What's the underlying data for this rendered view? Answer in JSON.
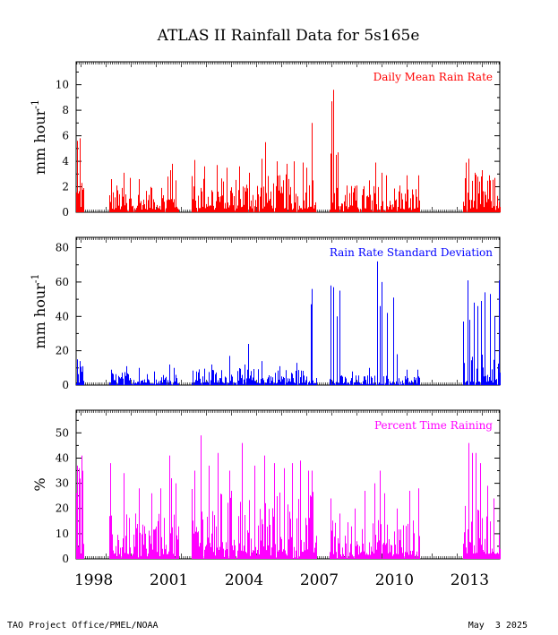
{
  "title": "ATLAS II Rainfall Data for 5s165e",
  "footer_left": "TAO Project Office/PMEL/NOAA",
  "footer_right": "May  3 2025",
  "x_axis": {
    "range": [
      1997.8,
      2014.7
    ],
    "ticks": [
      "1998",
      "2001",
      "2004",
      "2007",
      "2010",
      "2013"
    ]
  },
  "chart_data": [
    {
      "type": "bar",
      "title": "Daily Mean Rain Rate",
      "ylabel": "mm hour",
      "ylabel_superscript": "-1",
      "ylim": [
        0,
        11.8
      ],
      "yticks": [
        "0",
        "2",
        "4",
        "6",
        "8",
        "10"
      ],
      "color": "#ff0000",
      "x_range": [
        1997.8,
        2014.7
      ],
      "gaps": [
        [
          1998.1,
          1999.1
        ],
        [
          2001.9,
          2002.4
        ],
        [
          2007.4,
          2007.9
        ],
        [
          2011.5,
          2013.2
        ]
      ],
      "segments": [
        {
          "range": [
            1997.8,
            1998.1
          ],
          "typical": 1.6,
          "peaks": [
            [
              1997.85,
              5.6
            ],
            [
              1997.95,
              5.8
            ],
            [
              1998.0,
              2.3
            ]
          ]
        },
        {
          "range": [
            1999.1,
            2001.9
          ],
          "typical": 1.0,
          "peaks": [
            [
              1999.2,
              2.6
            ],
            [
              1999.4,
              2.1
            ],
            [
              1999.7,
              3.1
            ],
            [
              1999.95,
              2.7
            ],
            [
              2000.3,
              2.6
            ],
            [
              2000.8,
              1.9
            ],
            [
              2001.2,
              1.9
            ],
            [
              2001.45,
              2.8
            ],
            [
              2001.55,
              3.3
            ],
            [
              2001.62,
              3.8
            ],
            [
              2001.75,
              2.5
            ]
          ]
        },
        {
          "range": [
            2002.4,
            2007.4
          ],
          "typical": 1.5,
          "peaks": [
            [
              2002.5,
              4.1
            ],
            [
              2002.9,
              3.6
            ],
            [
              2003.4,
              3.7
            ],
            [
              2003.8,
              3.5
            ],
            [
              2004.3,
              3.6
            ],
            [
              2004.7,
              3.1
            ],
            [
              2005.2,
              4.2
            ],
            [
              2005.35,
              5.5
            ],
            [
              2005.8,
              4.0
            ],
            [
              2006.2,
              3.8
            ],
            [
              2006.5,
              4.0
            ],
            [
              2006.85,
              3.9
            ],
            [
              2007.0,
              3.5
            ],
            [
              2007.2,
              7.0
            ],
            [
              2007.25,
              2.5
            ]
          ]
        },
        {
          "range": [
            2007.9,
            2011.5
          ],
          "typical": 1.1,
          "peaks": [
            [
              2007.95,
              4.6
            ],
            [
              2008.0,
              8.7
            ],
            [
              2008.05,
              9.6
            ],
            [
              2008.15,
              4.5
            ],
            [
              2008.25,
              4.7
            ],
            [
              2008.6,
              2.1
            ],
            [
              2009.0,
              2.1
            ],
            [
              2009.5,
              2.5
            ],
            [
              2009.75,
              3.9
            ],
            [
              2010.0,
              3.1
            ],
            [
              2010.15,
              2.9
            ],
            [
              2010.7,
              2.1
            ],
            [
              2011.0,
              2.9
            ],
            [
              2011.45,
              2.9
            ]
          ]
        },
        {
          "range": [
            2013.2,
            2014.7
          ],
          "typical": 1.5,
          "peaks": [
            [
              2013.35,
              3.9
            ],
            [
              2013.45,
              4.2
            ],
            [
              2013.7,
              3.1
            ],
            [
              2014.0,
              3.3
            ],
            [
              2014.3,
              2.5
            ],
            [
              2014.5,
              2.7
            ]
          ]
        }
      ],
      "legend": "Daily Mean Rain Rate"
    },
    {
      "type": "bar",
      "title": "Rain Rate Standard Deviation",
      "ylabel": "mm hour",
      "ylabel_superscript": "-1",
      "ylim": [
        0,
        86
      ],
      "yticks": [
        "0",
        "20",
        "40",
        "60",
        "80"
      ],
      "color": "#0000ff",
      "x_range": [
        1997.8,
        2014.7
      ],
      "gaps": [
        [
          1998.1,
          1999.1
        ],
        [
          2001.9,
          2002.4
        ],
        [
          2007.4,
          2007.9
        ],
        [
          2011.5,
          2013.2
        ]
      ],
      "segments": [
        {
          "range": [
            1997.8,
            1998.1
          ],
          "typical": 6,
          "peaks": [
            [
              1997.85,
              15
            ],
            [
              1997.95,
              14
            ],
            [
              1998.05,
              11
            ]
          ]
        },
        {
          "range": [
            1999.1,
            2001.9
          ],
          "typical": 4,
          "peaks": [
            [
              1999.2,
              9
            ],
            [
              1999.8,
              11
            ],
            [
              2000.3,
              10
            ],
            [
              2000.9,
              8
            ],
            [
              2001.5,
              12
            ],
            [
              2001.7,
              10
            ]
          ]
        },
        {
          "range": [
            2002.4,
            2007.4
          ],
          "typical": 5,
          "peaks": [
            [
              2002.6,
              8
            ],
            [
              2003.2,
              12
            ],
            [
              2003.9,
              17
            ],
            [
              2004.5,
              12
            ],
            [
              2004.65,
              24
            ],
            [
              2005.2,
              14
            ],
            [
              2005.9,
              11
            ],
            [
              2006.6,
              13
            ],
            [
              2007.15,
              47
            ],
            [
              2007.2,
              56
            ]
          ]
        },
        {
          "range": [
            2007.9,
            2011.5
          ],
          "typical": 3,
          "peaks": [
            [
              2007.95,
              58
            ],
            [
              2008.05,
              57
            ],
            [
              2008.2,
              40
            ],
            [
              2008.3,
              55
            ],
            [
              2008.8,
              8
            ],
            [
              2009.5,
              10
            ],
            [
              2009.8,
              72
            ],
            [
              2009.9,
              46
            ],
            [
              2010.0,
              60
            ],
            [
              2010.2,
              42
            ],
            [
              2010.45,
              51
            ],
            [
              2010.6,
              18
            ],
            [
              2011.0,
              9
            ],
            [
              2011.4,
              9
            ]
          ]
        },
        {
          "range": [
            2013.2,
            2014.7
          ],
          "typical": 10,
          "peaks": [
            [
              2013.25,
              37
            ],
            [
              2013.4,
              61
            ],
            [
              2013.5,
              38
            ],
            [
              2013.65,
              48
            ],
            [
              2013.8,
              46
            ],
            [
              2013.95,
              49
            ],
            [
              2014.1,
              54
            ],
            [
              2014.3,
              53
            ],
            [
              2014.5,
              40
            ],
            [
              2014.65,
              61
            ]
          ]
        }
      ],
      "legend": "Rain Rate Standard Deviation"
    },
    {
      "type": "bar",
      "title": "Percent Time Raining",
      "ylabel": "%",
      "ylim": [
        0,
        59
      ],
      "yticks": [
        "0",
        "10",
        "20",
        "30",
        "40",
        "50"
      ],
      "color": "#ff00ff",
      "x_range": [
        1997.8,
        2014.7
      ],
      "gaps": [
        [
          1998.1,
          1999.1
        ],
        [
          2001.9,
          2002.4
        ],
        [
          2007.4,
          2007.9
        ],
        [
          2011.5,
          2013.2
        ]
      ],
      "segments": [
        {
          "range": [
            1997.8,
            1998.1
          ],
          "typical": 18,
          "peaks": [
            [
              1997.85,
              37
            ],
            [
              1997.9,
              36
            ],
            [
              1998.0,
              41
            ]
          ]
        },
        {
          "range": [
            1999.1,
            2001.9
          ],
          "typical": 9,
          "peaks": [
            [
              1999.15,
              38
            ],
            [
              1999.7,
              34
            ],
            [
              2000.3,
              28
            ],
            [
              2000.8,
              26
            ],
            [
              2001.15,
              28
            ],
            [
              2001.5,
              41
            ],
            [
              2001.6,
              32
            ],
            [
              2001.75,
              30
            ]
          ]
        },
        {
          "range": [
            2002.4,
            2007.4
          ],
          "typical": 14,
          "peaks": [
            [
              2002.5,
              35
            ],
            [
              2002.75,
              49
            ],
            [
              2003.1,
              37
            ],
            [
              2003.45,
              42
            ],
            [
              2003.9,
              35
            ],
            [
              2004.4,
              46
            ],
            [
              2004.9,
              37
            ],
            [
              2005.3,
              41
            ],
            [
              2005.7,
              38
            ],
            [
              2006.1,
              36
            ],
            [
              2006.4,
              38
            ],
            [
              2006.75,
              39
            ],
            [
              2007.05,
              35
            ],
            [
              2007.2,
              35
            ]
          ]
        },
        {
          "range": [
            2007.9,
            2011.5
          ],
          "typical": 8,
          "peaks": [
            [
              2007.95,
              24
            ],
            [
              2008.3,
              18
            ],
            [
              2008.9,
              20
            ],
            [
              2009.3,
              27
            ],
            [
              2009.7,
              30
            ],
            [
              2009.9,
              35
            ],
            [
              2010.1,
              26
            ],
            [
              2010.6,
              20
            ],
            [
              2011.1,
              27
            ],
            [
              2011.45,
              28
            ]
          ]
        },
        {
          "range": [
            2013.2,
            2014.7
          ],
          "typical": 10,
          "peaks": [
            [
              2013.3,
              21
            ],
            [
              2013.45,
              46
            ],
            [
              2013.6,
              42
            ],
            [
              2013.75,
              42
            ],
            [
              2013.9,
              38
            ],
            [
              2014.2,
              29
            ],
            [
              2014.45,
              24
            ]
          ]
        }
      ],
      "legend": "Percent Time Raining"
    }
  ]
}
